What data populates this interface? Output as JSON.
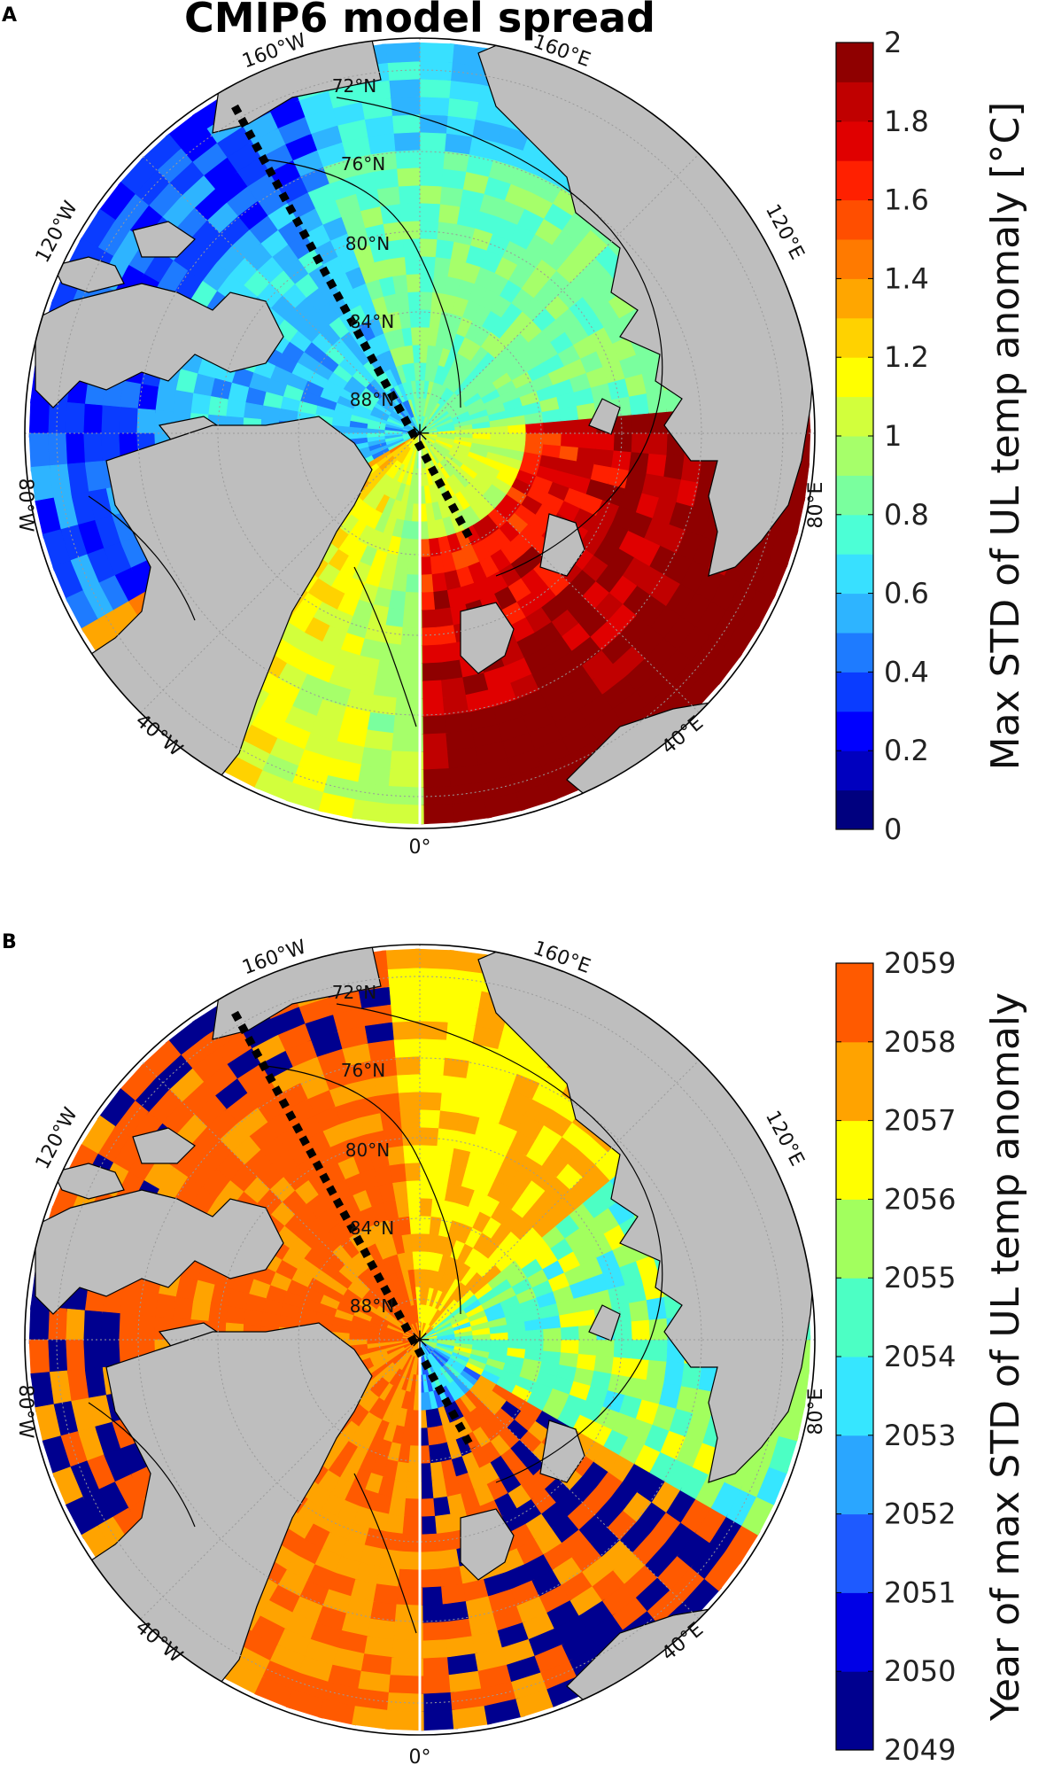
{
  "panels": [
    {
      "letter": "A",
      "title": "CMIP6 model spread",
      "colorbar_label": "Max STD of UL temp anomaly [°C]",
      "colorbar_ticks": [
        "2",
        "1.8",
        "1.6",
        "1.4",
        "1.2",
        "1",
        "0.8",
        "0.6",
        "0.4",
        "0.2",
        "0"
      ],
      "colormap": [
        "#00007f",
        "#0000bf",
        "#0000ff",
        "#0a3cff",
        "#1e7bff",
        "#2eb4ff",
        "#38e0ff",
        "#4cffd6",
        "#7aff9e",
        "#a6ff6a",
        "#d2ff3c",
        "#ffff00",
        "#ffd200",
        "#ffa600",
        "#ff7a00",
        "#ff4e00",
        "#ff2000",
        "#e00000",
        "#c00000",
        "#8f0000"
      ]
    },
    {
      "letter": "B",
      "colorbar_label": "Year of max STD of UL temp anomaly",
      "colorbar_ticks": [
        "2059",
        "2058",
        "2057",
        "2056",
        "2055",
        "2054",
        "2053",
        "2052",
        "2051",
        "2050",
        "2049"
      ],
      "colormap": [
        "#00008f",
        "#0000e6",
        "#1e5aff",
        "#2aa6ff",
        "#36e6ff",
        "#4cffc4",
        "#a2ff5e",
        "#ffff00",
        "#ffa300",
        "#ff5a00"
      ]
    }
  ],
  "lon_labels": [
    "160°W",
    "160°E",
    "120°W",
    "120°E",
    "80°W",
    "80°E",
    "40°W",
    "40°E",
    "0°"
  ],
  "lat_labels": [
    "72°N",
    "76°N",
    "80°N",
    "84°N",
    "88°N"
  ],
  "colors": {
    "land": "#bebebe",
    "ocean_empty": "#ffffff",
    "grid": "#9a9a9a",
    "transect": "#000000"
  }
}
